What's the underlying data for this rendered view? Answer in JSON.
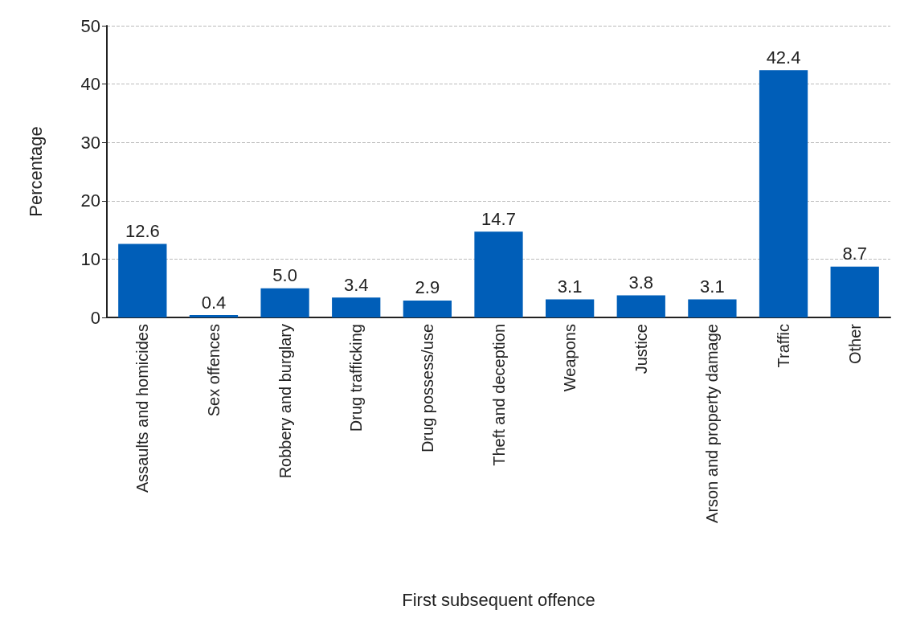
{
  "chart_data": {
    "type": "bar",
    "xlabel": "First subsequent offence",
    "ylabel": "Percentage",
    "categories": [
      "Assaults and homicides",
      "Sex offences",
      "Robbery and burglary",
      "Drug trafficking",
      "Drug possess/use",
      "Theft and deception",
      "Weapons",
      "Justice",
      "Arson and property damage",
      "Traffic",
      "Other"
    ],
    "values": [
      12.6,
      0.4,
      5.0,
      3.4,
      2.9,
      14.7,
      3.1,
      3.8,
      3.1,
      42.4,
      8.7
    ],
    "value_labels": [
      "12.6",
      "0.4",
      "5.0",
      "3.4",
      "2.9",
      "14.7",
      "3.1",
      "3.8",
      "3.1",
      "42.4",
      "8.7"
    ],
    "color": "#005eb8",
    "ylim": [
      0,
      50
    ],
    "yticks": [
      0,
      10,
      20,
      30,
      40,
      50
    ],
    "grid": "y"
  }
}
